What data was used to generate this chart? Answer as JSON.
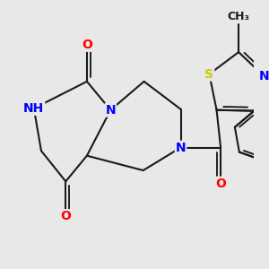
{
  "background_color": "#e8e8e8",
  "bond_color": "#1a1a1a",
  "bond_width": 1.5,
  "atom_colors": {
    "N": "#0000ff",
    "O": "#ff0000",
    "S": "#cccc00",
    "C": "#1a1a1a",
    "H": "#888888"
  },
  "font_size": 10,
  "font_size_small": 9,
  "xlim": [
    -3.0,
    3.2
  ],
  "ylim": [
    -3.0,
    2.6
  ]
}
